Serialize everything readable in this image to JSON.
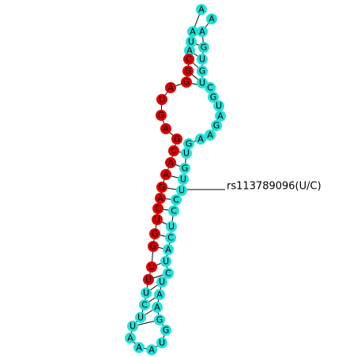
{
  "colors": {
    "mature": "#dd0000",
    "other": "#22e0d8",
    "line": "#000000"
  },
  "snp": {
    "label": "rs113789096(U/C)",
    "index": 35
  },
  "strand_5p": [
    {
      "base": "A",
      "region": "other"
    },
    {
      "base": "U",
      "region": "other"
    },
    {
      "base": "A",
      "region": "other"
    },
    {
      "base": "C",
      "region": "mature"
    },
    {
      "base": "G",
      "region": "mature"
    },
    {
      "base": "G",
      "region": "mature"
    },
    {
      "base": "A",
      "region": "mature"
    },
    {
      "base": "U",
      "region": "mature"
    },
    {
      "base": "G",
      "region": "mature"
    },
    {
      "base": "A",
      "region": "mature"
    },
    {
      "base": "G",
      "region": "mature"
    },
    {
      "base": "C",
      "region": "mature"
    },
    {
      "base": "A",
      "region": "mature"
    },
    {
      "base": "A",
      "region": "mature"
    },
    {
      "base": "G",
      "region": "mature"
    },
    {
      "base": "A",
      "region": "mature"
    },
    {
      "base": "C",
      "region": "mature"
    },
    {
      "base": "U",
      "region": "mature"
    },
    {
      "base": "G",
      "region": "mature"
    },
    {
      "base": "G",
      "region": "mature"
    },
    {
      "base": "U",
      "region": "mature"
    },
    {
      "base": "U",
      "region": "mature"
    },
    {
      "base": "U",
      "region": "other"
    },
    {
      "base": "C",
      "region": "other"
    },
    {
      "base": "U",
      "region": "other"
    },
    {
      "base": "U",
      "region": "other"
    }
  ],
  "loop": [
    "A",
    "A",
    "A"
  ],
  "strand_3p": [
    {
      "base": "U",
      "region": "other"
    },
    {
      "base": "G",
      "region": "other"
    },
    {
      "base": "G",
      "region": "other"
    },
    {
      "base": "A",
      "region": "other"
    },
    {
      "base": "A",
      "region": "other"
    },
    {
      "base": "U",
      "region": "other"
    },
    {
      "base": "C",
      "region": "other"
    },
    {
      "base": "U",
      "region": "other"
    },
    {
      "base": "A",
      "region": "other"
    },
    {
      "base": "C",
      "region": "other"
    },
    {
      "base": "U",
      "region": "other"
    },
    {
      "base": "C",
      "region": "other"
    },
    {
      "base": "C",
      "region": "other"
    },
    {
      "base": "U",
      "region": "other"
    },
    {
      "base": "U",
      "region": "other"
    },
    {
      "base": "G",
      "region": "other"
    },
    {
      "base": "U",
      "region": "other"
    },
    {
      "base": "G",
      "region": "other"
    },
    {
      "base": "A",
      "region": "other"
    },
    {
      "base": "A",
      "region": "other"
    },
    {
      "base": "G",
      "region": "other"
    },
    {
      "base": "A",
      "region": "other"
    },
    {
      "base": "U",
      "region": "other"
    },
    {
      "base": "G",
      "region": "other"
    },
    {
      "base": "C",
      "region": "other"
    },
    {
      "base": "U",
      "region": "other"
    },
    {
      "base": "G",
      "region": "other"
    },
    {
      "base": "U",
      "region": "other"
    },
    {
      "base": "G",
      "region": "other"
    },
    {
      "base": "A",
      "region": "other"
    }
  ]
}
